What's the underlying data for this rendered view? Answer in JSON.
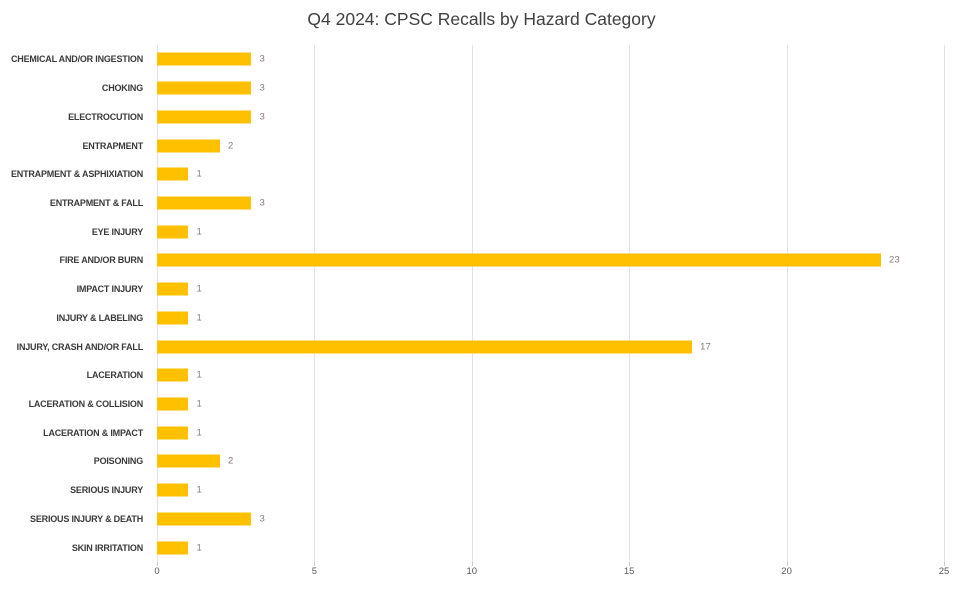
{
  "title": "Q4 2024: CPSC Recalls by Hazard Category",
  "chart_data": {
    "type": "bar",
    "orientation": "horizontal",
    "title": "Q4 2024: CPSC Recalls by Hazard Category",
    "xlabel": "",
    "ylabel": "",
    "categories": [
      "CHEMICAL AND/OR INGESTION",
      "CHOKING",
      "ELECTROCUTION",
      "ENTRAPMENT",
      "ENTRAPMENT & ASPHIXIATION",
      "ENTRAPMENT & FALL",
      "EYE INJURY",
      "FIRE AND/OR BURN",
      "IMPACT INJURY",
      "INJURY & LABELING",
      "INJURY, CRASH AND/OR FALL",
      "LACERATION",
      "LACERATION & COLLISION",
      "LACERATION & IMPACT",
      "POISONING",
      "SERIOUS INJURY",
      "SERIOUS INJURY & DEATH",
      "SKIN IRRITATION"
    ],
    "values": [
      3,
      3,
      3,
      2,
      1,
      3,
      1,
      23,
      1,
      1,
      17,
      1,
      1,
      1,
      2,
      1,
      3,
      1
    ],
    "xlim": [
      0,
      25
    ],
    "x_ticks": [
      0,
      5,
      10,
      15,
      20,
      25
    ],
    "grid": "vertical-only",
    "data_labels": true,
    "legend": "none"
  },
  "colors": {
    "bar": "#FFC000",
    "gridline": "#EDDEE3",
    "title_text": "#404040",
    "category_text": "#3A3A3A",
    "value_label_text": "#8A7878",
    "axis_tick_text": "#595959",
    "background": "#FFFFFF"
  }
}
